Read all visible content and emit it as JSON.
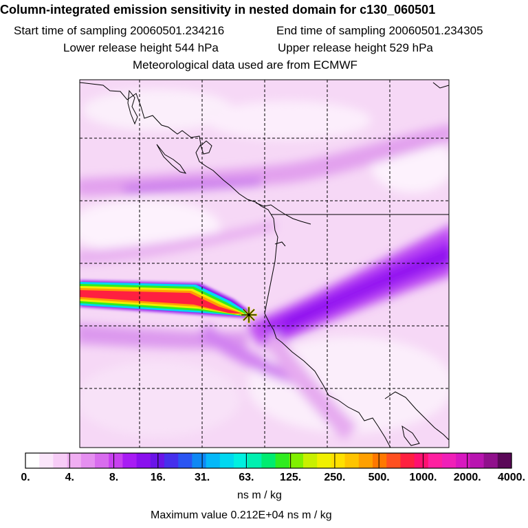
{
  "header": {
    "title": "Column-integrated emission sensitivity in nested domain for c130_060501",
    "start_time": "Start time of sampling 20060501.234216",
    "end_time": "End time of sampling 20060501.234305",
    "lower_height": "Lower release height  544 hPa",
    "upper_height": "Upper release height  529 hPa",
    "met_source": "Meteorological data used are from ECMWF"
  },
  "colorbar": {
    "tick_labels": [
      "0.",
      "4.",
      "8.",
      "16.",
      "31.",
      "63.",
      "125.",
      "250.",
      "500.",
      "1000.",
      "2000.",
      "4000."
    ],
    "colors": [
      "#ffffff",
      "#fbe6fb",
      "#f7ccf7",
      "#f0aef2",
      "#e58ff0",
      "#d86cee",
      "#c840f0",
      "#a81cf4",
      "#8a10ee",
      "#6a14e8",
      "#4630ec",
      "#2a55f2",
      "#0f88f4",
      "#05b8f8",
      "#00d8f0",
      "#00f0e0",
      "#00f0b0",
      "#00ec70",
      "#30ec20",
      "#80f000",
      "#c8f000",
      "#f0f000",
      "#ffe000",
      "#ffc400",
      "#ffa000",
      "#ff7800",
      "#ff5020",
      "#ff2040",
      "#ff1070",
      "#ff20a0",
      "#f020b8",
      "#d818c0",
      "#b814b0",
      "#90108c",
      "#5a0858"
    ],
    "units": "ns m / kg",
    "max_value": "Maximum value  0.212E+04 ns m / kg"
  },
  "map": {
    "release_marker": "release-point-star",
    "plume_colors": [
      "#ff2040",
      "#ffa000",
      "#f0f000",
      "#30ec20",
      "#00d8f0",
      "#8a10ee"
    ]
  }
}
